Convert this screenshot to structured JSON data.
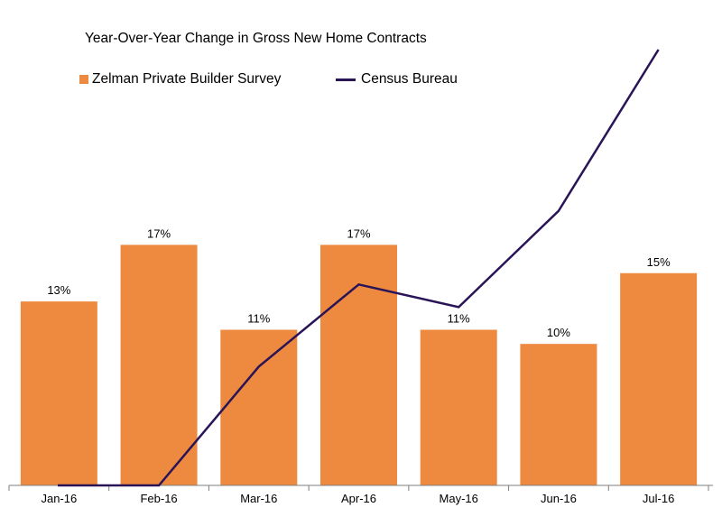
{
  "chart_data": {
    "type": "bar",
    "title": "Year-Over-Year Change in Gross New Home Contracts",
    "categories": [
      "Jan-16",
      "Feb-16",
      "Mar-16",
      "Apr-16",
      "May-16",
      "Jun-16",
      "Jul-16"
    ],
    "series": [
      {
        "name": "Zelman Private Builder Survey",
        "kind": "bar",
        "color": "#ED8A3F",
        "values": [
          13,
          17,
          11,
          17,
          11,
          10,
          15
        ],
        "labels": [
          "13%",
          "17%",
          "11%",
          "17%",
          "11%",
          "10%",
          "15%"
        ]
      },
      {
        "name": "Census Bureau",
        "kind": "line",
        "color": "#2A1458",
        "values": [
          0,
          0,
          8.4,
          14.2,
          12.6,
          19.4,
          30.8
        ]
      }
    ],
    "ylim": [
      0,
      31.5
    ],
    "xlabel": "",
    "ylabel": "",
    "grid": false,
    "legend": "top-left"
  }
}
